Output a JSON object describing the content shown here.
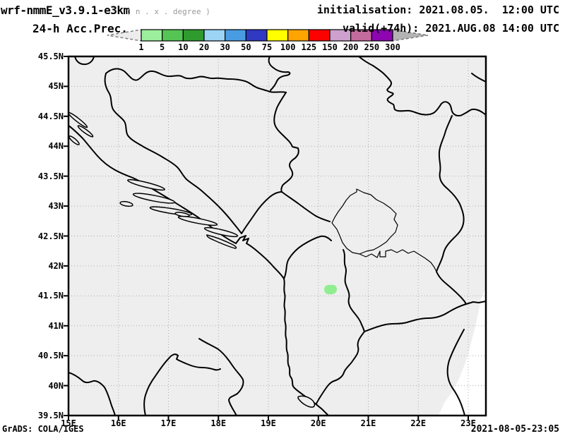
{
  "header": {
    "title": "wrf-nmmE_v3.9.1-e3km",
    "title_note": "( n . x . degree )",
    "product": "24-h Acc.Prec.",
    "init_line": "initialisation: 2021.08.05.  12:00 UTC",
    "valid_line": "valid(+74h): 2021.AUG.08 14:00 UTC"
  },
  "legend": {
    "tick_labels": [
      "1",
      "5",
      "10",
      "20",
      "30",
      "50",
      "75",
      "100",
      "125",
      "150",
      "200",
      "250",
      "300"
    ],
    "colors": [
      "#9cef9c",
      "#55c455",
      "#2f9b2f",
      "#9bd4f5",
      "#4a9ce2",
      "#3039c2",
      "#ffff00",
      "#ffa400",
      "#fb0200",
      "#cda0cd",
      "#c46b9d",
      "#8d06b1"
    ],
    "left_arrow_color": "#ececec",
    "right_arrow_color": "#b3b3b3"
  },
  "axes": {
    "y_labels": [
      "45.5N",
      "45N",
      "44.5N",
      "44N",
      "43.5N",
      "43N",
      "42.5N",
      "42N",
      "41.5N",
      "41N",
      "40.5N",
      "40N",
      "39.5N"
    ],
    "x_labels": [
      "15E",
      "16E",
      "17E",
      "18E",
      "19E",
      "20E",
      "21E",
      "22E",
      "23E"
    ]
  },
  "footer": {
    "credit": "GrADS: COLA/IGES",
    "timestamp": "2021-08-05-23:05"
  },
  "map_colors": {
    "background": "#eeeeee",
    "nodata": "#ffffff",
    "border": "#000000",
    "grid": "#aaaaaa"
  },
  "chart_data": {
    "type": "heatmap",
    "title": "24-h Acc.Prec.",
    "subtitle": "wrf-nmmE_v3.9.1-e3km",
    "init": "2021.08.05. 12:00 UTC",
    "valid": "2021.AUG.08 14:00 UTC",
    "lead_hours": 74,
    "x_axis": {
      "ticks": [
        "15E",
        "16E",
        "17E",
        "18E",
        "19E",
        "20E",
        "21E",
        "22E",
        "23E"
      ],
      "range_deg_east": [
        15,
        23.35
      ]
    },
    "y_axis": {
      "ticks": [
        "39.5N",
        "40N",
        "40.5N",
        "41N",
        "41.5N",
        "42N",
        "42.5N",
        "43N",
        "43.5N",
        "44N",
        "44.5N",
        "45N",
        "45.5N"
      ],
      "range_deg_north": [
        39.5,
        45.5
      ]
    },
    "legend_levels_mm": [
      1,
      5,
      10,
      20,
      30,
      50,
      75,
      100,
      125,
      150,
      200,
      250,
      300
    ],
    "legend_colors": [
      "#9cef9c",
      "#55c455",
      "#2f9b2f",
      "#9bd4f5",
      "#4a9ce2",
      "#3039c2",
      "#ffff00",
      "#ffa400",
      "#fb0200",
      "#cda0cd",
      "#c46b9d",
      "#8d06b1"
    ],
    "points": [
      {
        "lon_deg_east": 20.2,
        "lat_deg_north": 41.57,
        "value_mm_range": "1-5",
        "color": "#90ee90"
      }
    ],
    "notes": "Forecast 24-h accumulated precipitation is zero over the whole Balkan domain except one small 1-5 mm patch in central Albania"
  }
}
